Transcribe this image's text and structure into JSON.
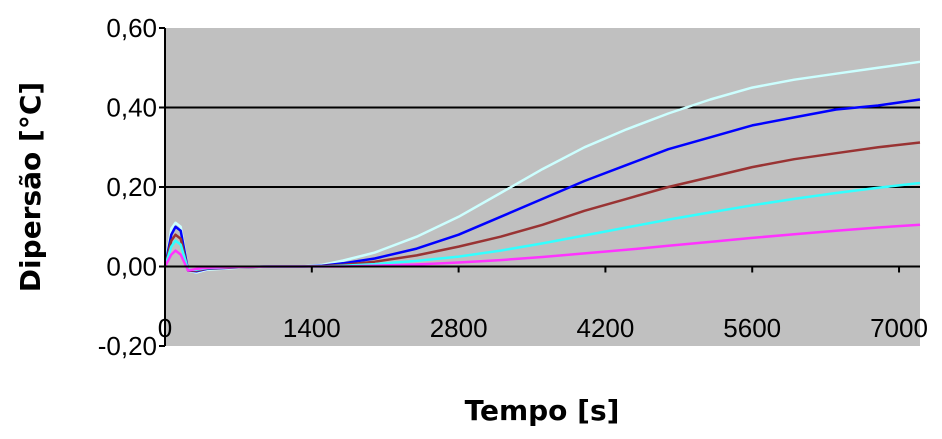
{
  "chart_data": {
    "type": "line",
    "title": "",
    "xlabel": "Tempo [s]",
    "ylabel": "Dipersão [°C]",
    "xlim": [
      0,
      7200
    ],
    "ylim": [
      -0.2,
      0.6
    ],
    "x_ticks": [
      0,
      1400,
      2800,
      4200,
      5600,
      7000
    ],
    "x_tick_labels": [
      "0",
      "1400",
      "2800",
      "4200",
      "5600",
      "7000"
    ],
    "y_ticks": [
      -0.2,
      0.0,
      0.2,
      0.4,
      0.6
    ],
    "y_tick_labels": [
      "-0,20",
      "0,00",
      "0,20",
      "0,40",
      "0,60"
    ],
    "grid": "horizontal",
    "legend": "none",
    "plot_background": "#c0c0c0",
    "series": [
      {
        "color": "#ccffff",
        "x": [
          0,
          60,
          100,
          150,
          220,
          300,
          400,
          700,
          1000,
          1300,
          1500,
          1700,
          2000,
          2400,
          2800,
          3200,
          3600,
          4000,
          4400,
          4800,
          5200,
          5600,
          6000,
          6400,
          6800,
          7200
        ],
        "y": [
          0.0,
          0.095,
          0.11,
          0.1,
          -0.01,
          -0.015,
          -0.008,
          -0.003,
          0.0,
          0.0,
          0.004,
          0.015,
          0.035,
          0.075,
          0.125,
          0.185,
          0.245,
          0.3,
          0.345,
          0.385,
          0.42,
          0.45,
          0.47,
          0.485,
          0.5,
          0.515
        ]
      },
      {
        "color": "#0000ff",
        "x": [
          0,
          60,
          100,
          150,
          220,
          300,
          400,
          700,
          1000,
          1300,
          1500,
          1700,
          2000,
          2400,
          2800,
          3200,
          3600,
          4000,
          4400,
          4800,
          5200,
          5600,
          6000,
          6400,
          6800,
          7200
        ],
        "y": [
          0.0,
          0.08,
          0.1,
          0.09,
          -0.01,
          -0.012,
          -0.006,
          -0.002,
          0.0,
          0.0,
          0.002,
          0.008,
          0.02,
          0.045,
          0.08,
          0.125,
          0.17,
          0.215,
          0.255,
          0.295,
          0.325,
          0.355,
          0.375,
          0.395,
          0.405,
          0.42
        ]
      },
      {
        "color": "#993333",
        "x": [
          0,
          60,
          100,
          150,
          220,
          300,
          400,
          700,
          1000,
          1300,
          1500,
          1700,
          2000,
          2400,
          2800,
          3200,
          3600,
          4000,
          4400,
          4800,
          5200,
          5600,
          6000,
          6400,
          6800,
          7200
        ],
        "y": [
          0.0,
          0.065,
          0.08,
          0.07,
          -0.01,
          -0.01,
          -0.005,
          -0.002,
          0.0,
          0.0,
          0.001,
          0.004,
          0.012,
          0.028,
          0.05,
          0.075,
          0.105,
          0.14,
          0.17,
          0.2,
          0.225,
          0.25,
          0.27,
          0.285,
          0.3,
          0.312
        ]
      },
      {
        "color": "#33ffff",
        "x": [
          0,
          60,
          100,
          150,
          220,
          300,
          400,
          700,
          1000,
          1300,
          1500,
          1700,
          2000,
          2400,
          2800,
          3200,
          3600,
          4000,
          4400,
          4800,
          5200,
          5600,
          6000,
          6400,
          6800,
          7200
        ],
        "y": [
          0.0,
          0.05,
          0.065,
          0.055,
          -0.008,
          -0.008,
          -0.004,
          -0.001,
          0.0,
          0.0,
          0.0,
          0.002,
          0.006,
          0.014,
          0.025,
          0.04,
          0.058,
          0.078,
          0.098,
          0.118,
          0.136,
          0.154,
          0.17,
          0.185,
          0.198,
          0.21
        ]
      },
      {
        "color": "#ff33ff",
        "x": [
          0,
          60,
          100,
          150,
          220,
          300,
          400,
          700,
          1000,
          1300,
          1500,
          1700,
          2000,
          2400,
          2800,
          3200,
          3600,
          4000,
          4400,
          4800,
          5200,
          5600,
          6000,
          6400,
          6800,
          7200
        ],
        "y": [
          0.0,
          0.03,
          0.04,
          0.03,
          -0.01,
          -0.006,
          -0.003,
          -0.001,
          0.0,
          0.0,
          0.0,
          0.0,
          0.002,
          0.005,
          0.01,
          0.016,
          0.024,
          0.033,
          0.042,
          0.052,
          0.062,
          0.072,
          0.081,
          0.09,
          0.098,
          0.105
        ]
      }
    ]
  }
}
